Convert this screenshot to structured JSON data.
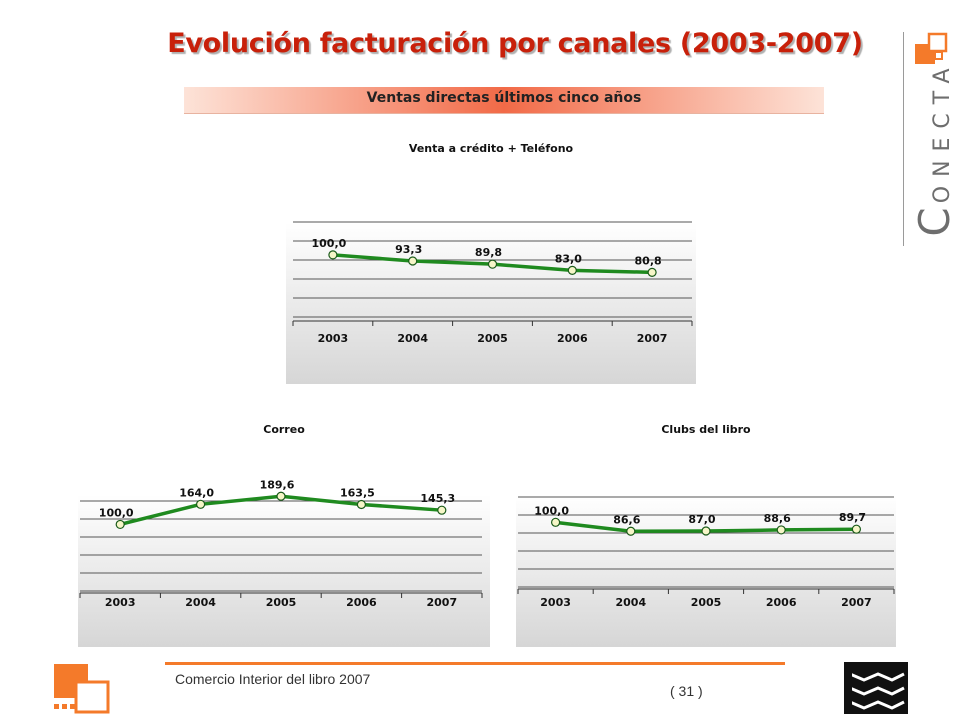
{
  "header": {
    "title": "Evolución facturación por canales (2003-2007)",
    "subtitle": "Ventas directas últimos cinco años"
  },
  "logo": {
    "cap": "C",
    "rest": "ONECTA"
  },
  "footer": {
    "text": "Comercio Interior del libro 2007",
    "page": "( 31 )"
  },
  "colors": {
    "accent": "#f47a2a",
    "title": "#c8200a",
    "line": "#1f8a1f"
  },
  "chart_data": [
    {
      "type": "line",
      "title": "Venta a crédito + Teléfono",
      "categories": [
        "2003",
        "2004",
        "2005",
        "2006",
        "2007"
      ],
      "values": [
        100.0,
        93.3,
        89.8,
        83.0,
        80.8
      ],
      "labels": [
        "100,0",
        "93,3",
        "89,8",
        "83,0",
        "80,8"
      ],
      "grid": true
    },
    {
      "type": "line",
      "title": "Correo",
      "categories": [
        "2003",
        "2004",
        "2005",
        "2006",
        "2007"
      ],
      "values": [
        100.0,
        164.0,
        189.6,
        163.5,
        145.3
      ],
      "labels": [
        "100,0",
        "164,0",
        "189,6",
        "163,5",
        "145,3"
      ],
      "grid": true
    },
    {
      "type": "line",
      "title": "Clubs del libro",
      "categories": [
        "2003",
        "2004",
        "2005",
        "2006",
        "2007"
      ],
      "values": [
        100.0,
        86.6,
        87.0,
        88.6,
        89.7
      ],
      "labels": [
        "100,0",
        "86,6",
        "87,0",
        "88,6",
        "89,7"
      ],
      "grid": true
    }
  ]
}
